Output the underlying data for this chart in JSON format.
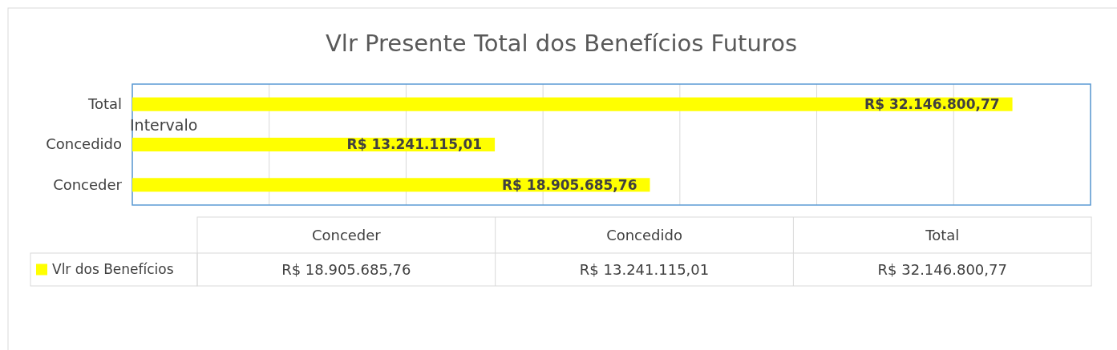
{
  "chart_data": {
    "type": "bar",
    "orientation": "horizontal",
    "title": "Vlr Presente Total dos Benefícios Futuros",
    "categories": [
      "Total",
      "Concedido",
      "Conceder"
    ],
    "series": [
      {
        "name": "Vlr dos Benefícios",
        "color": "#ffff00",
        "values": [
          32146800.77,
          13241115.01,
          18905685.76
        ],
        "value_labels": [
          "R$ 32.146.800,77",
          "R$ 13.241.115,01",
          "R$ 18.905.685,76"
        ]
      }
    ],
    "xlim": [
      0,
      35000000
    ],
    "xticks": [
      {
        "value": 0,
        "label": null
      },
      {
        "value": 5000000,
        "label": null
      },
      {
        "value": 10000000,
        "label": null
      },
      {
        "value": 15000000,
        "label": null
      },
      {
        "value": 20000000,
        "label": null
      },
      {
        "value": 25000000,
        "label": null
      },
      {
        "value": 30000000,
        "label": null
      },
      {
        "value": 35000000,
        "label": null
      }
    ],
    "tick_labels": "y",
    "grid": "x",
    "legend": "bottom",
    "data_labels": true,
    "annotations": [
      "Intervalo"
    ]
  }
}
